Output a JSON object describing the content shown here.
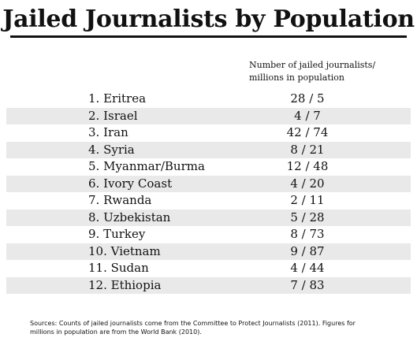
{
  "chart_data": {
    "type": "table",
    "title": "Jailed Journalists by Population",
    "column_header_line1": "Number of jailed journalists/",
    "column_header_line2": "millions in population",
    "rows": [
      {
        "label": "1. Eritrea",
        "journalists": 28,
        "population_millions": 5,
        "ratio_text": "28 / 5"
      },
      {
        "label": "2. Israel",
        "journalists": 4,
        "population_millions": 7,
        "ratio_text": "4 / 7"
      },
      {
        "label": "3. Iran",
        "journalists": 42,
        "population_millions": 74,
        "ratio_text": "42 / 74"
      },
      {
        "label": "4. Syria",
        "journalists": 8,
        "population_millions": 21,
        "ratio_text": "8 / 21"
      },
      {
        "label": "5. Myanmar/Burma",
        "journalists": 12,
        "population_millions": 48,
        "ratio_text": "12 / 48"
      },
      {
        "label": "6. Ivory Coast",
        "journalists": 4,
        "population_millions": 20,
        "ratio_text": "4 / 20"
      },
      {
        "label": "7. Rwanda",
        "journalists": 2,
        "population_millions": 11,
        "ratio_text": "2 / 11"
      },
      {
        "label": "8. Uzbekistan",
        "journalists": 5,
        "population_millions": 28,
        "ratio_text": "5 / 28"
      },
      {
        "label": "9. Turkey",
        "journalists": 8,
        "population_millions": 73,
        "ratio_text": "8 / 73"
      },
      {
        "label": "10. Vietnam",
        "journalists": 9,
        "population_millions": 87,
        "ratio_text": "9 / 87"
      },
      {
        "label": "11. Sudan",
        "journalists": 4,
        "population_millions": 44,
        "ratio_text": "4 / 44"
      },
      {
        "label": "12. Ethiopia",
        "journalists": 7,
        "population_millions": 83,
        "ratio_text": "7 / 83"
      }
    ],
    "shaded_rows": "even",
    "footnote_line1": "Sources: Counts of jailed journalists come from the Committee to Protect Journalists (2011). Figures for",
    "footnote_line2": "millions in population are from the World Bank (2010)."
  },
  "colors": {
    "band": "#e9e9e9",
    "text": "#111111",
    "background": "#ffffff"
  }
}
